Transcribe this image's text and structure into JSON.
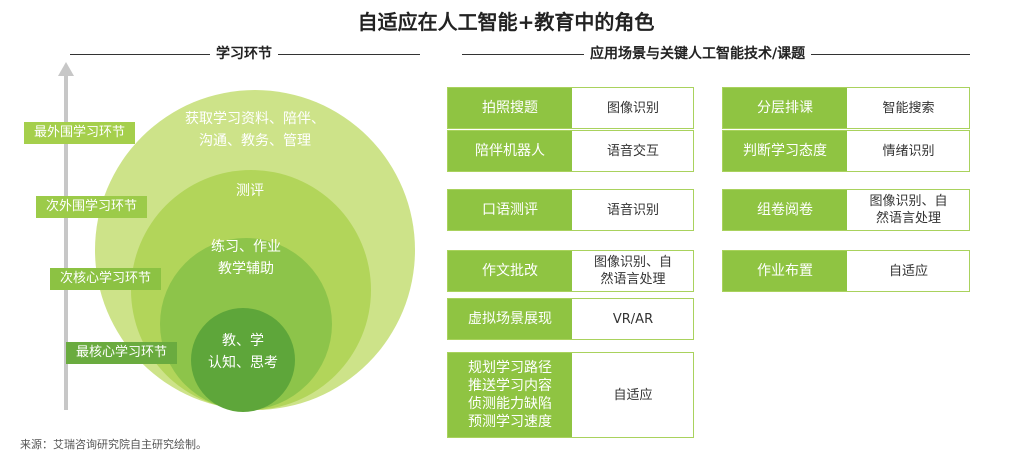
{
  "title": "自适应在人工智能+教育中的角色",
  "left_header": "学习环节",
  "right_header": "应用场景与关键人工智能技术/课题",
  "levels": [
    {
      "label": "最外围学习环节",
      "content": [
        "获取学习资料、陪伴、",
        "沟通、教务、管理"
      ]
    },
    {
      "label": "次外围学习环节",
      "content": [
        "测评"
      ]
    },
    {
      "label": "次核心学习环节",
      "content": [
        "练习、作业",
        "教学辅助"
      ]
    },
    {
      "label": "最核心学习环节",
      "content": [
        "教、学",
        "认知、思考"
      ]
    }
  ],
  "colors": {
    "outer": "#cde389",
    "second": "#b2d55a",
    "third": "#8dc44a",
    "core": "#5ea63a",
    "key_cell": "#8fc442",
    "border": "#a9d25d"
  },
  "left_table": [
    {
      "key": "拍照搜题",
      "value": "图像识别"
    },
    {
      "key": "陪伴机器人",
      "value": "语音交互"
    },
    {
      "key": "口语测评",
      "value": "语音识别"
    },
    {
      "key": "作文批改",
      "value": "图像识别、自然语言处理"
    },
    {
      "key": "虚拟场景展现",
      "value": "VR/AR"
    },
    {
      "key": "规划学习路径推送学习内容侦测能力缺陷预测学习速度",
      "value": "自适应"
    }
  ],
  "left_table_display": {
    "row4_value": [
      "图像识别、自",
      "然语言处理"
    ],
    "row6_key": [
      "规划学习路径",
      "推送学习内容",
      "侦测能力缺陷",
      "预测学习速度"
    ]
  },
  "right_table": [
    {
      "key": "分层排课",
      "value": "智能搜索"
    },
    {
      "key": "判断学习态度",
      "value": "情绪识别"
    },
    {
      "key": "组卷阅卷",
      "value": "图像识别、自然语言处理"
    },
    {
      "key": "作业布置",
      "value": "自适应"
    }
  ],
  "right_table_display": {
    "row3_value": [
      "图像识别、自",
      "然语言处理"
    ]
  },
  "source": "来源：艾瑞咨询研究院自主研究绘制。"
}
